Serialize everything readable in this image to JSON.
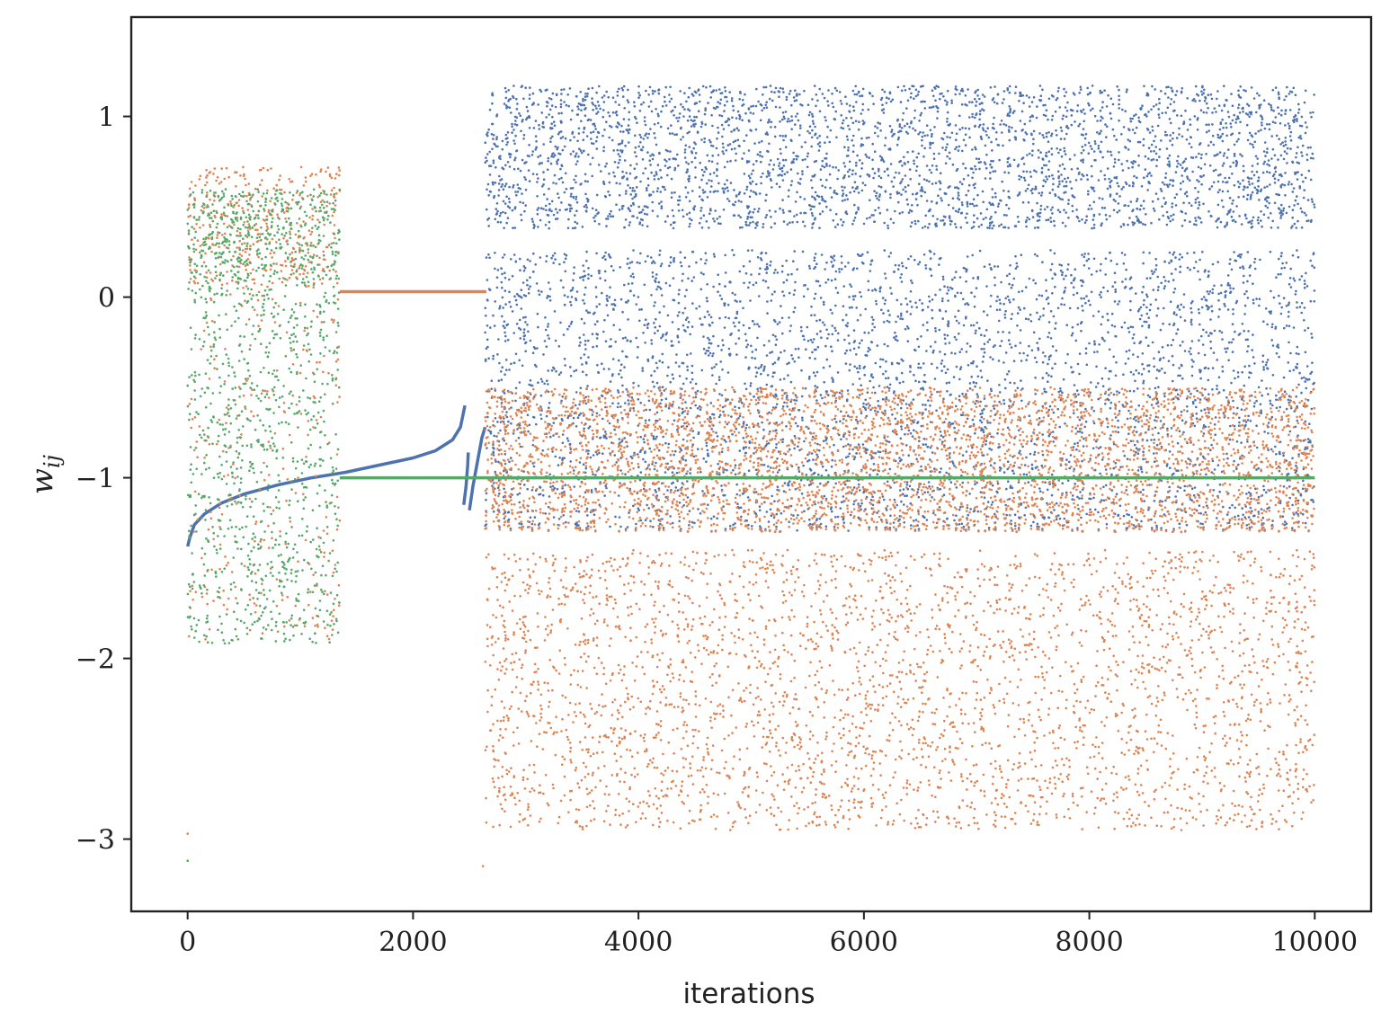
{
  "chart_data": {
    "type": "scatter",
    "xlabel": "iterations",
    "ylabel": "w",
    "ylabel_subscript": "ij",
    "xlim": [
      -500,
      10500
    ],
    "ylim": [
      -3.4,
      1.55
    ],
    "xticks": [
      0,
      2000,
      4000,
      6000,
      8000,
      10000
    ],
    "xtick_labels": [
      "0",
      "2000",
      "4000",
      "6000",
      "8000",
      "10000"
    ],
    "yticks": [
      1,
      0,
      -1,
      -2,
      -3
    ],
    "ytick_labels": [
      "1",
      "0",
      "−1",
      "−2",
      "−3"
    ],
    "grid": false,
    "colors": {
      "blue": "#4c72b0",
      "orange": "#dd8452",
      "green": "#55a868",
      "axes": "#222222"
    },
    "series": [
      {
        "color": "#4c72b0",
        "segments": [
          {
            "kind": "curve",
            "points": [
              [
                0,
                -1.38
              ],
              [
                20,
                -1.33
              ],
              [
                60,
                -1.26
              ],
              [
                150,
                -1.2
              ],
              [
                300,
                -1.14
              ],
              [
                500,
                -1.09
              ],
              [
                800,
                -1.04
              ],
              [
                1100,
                -1.0
              ],
              [
                1400,
                -0.97
              ],
              [
                1700,
                -0.93
              ],
              [
                2000,
                -0.89
              ],
              [
                2200,
                -0.85
              ],
              [
                2350,
                -0.79
              ],
              [
                2420,
                -0.72
              ],
              [
                2460,
                -0.6
              ]
            ]
          },
          {
            "kind": "curve",
            "points": [
              [
                2450,
                -1.15
              ],
              [
                2470,
                -1.05
              ],
              [
                2485,
                -0.93
              ],
              [
                2490,
                -0.86
              ]
            ]
          },
          {
            "kind": "curve",
            "points": [
              [
                2500,
                -1.18
              ],
              [
                2530,
                -1.05
              ],
              [
                2560,
                -0.95
              ],
              [
                2610,
                -0.78
              ],
              [
                2640,
                -0.72
              ]
            ]
          },
          {
            "kind": "noise",
            "x": [
              2640,
              10000
            ],
            "bands": [
              [
                0.38,
                1.17,
                0.45
              ],
              [
                -1.3,
                0.26,
                0.55
              ]
            ]
          }
        ]
      },
      {
        "color": "#dd8452",
        "segments": [
          {
            "kind": "noise",
            "x": [
              0,
              1350
            ],
            "bands": [
              [
                0.05,
                0.72,
                0.3
              ],
              [
                -1.9,
                0.05,
                0.2
              ]
            ]
          },
          {
            "kind": "line",
            "x": [
              1350,
              2650
            ],
            "y": 0.03
          },
          {
            "kind": "noise",
            "x": [
              2640,
              10000
            ],
            "bands": [
              [
                -1.3,
                -0.5,
                0.55
              ],
              [
                -2.95,
                -1.4,
                0.45
              ]
            ]
          }
        ],
        "outliers": [
          [
            0,
            -2.97
          ],
          [
            2620,
            -3.15
          ]
        ]
      },
      {
        "color": "#55a868",
        "segments": [
          {
            "kind": "noise",
            "x": [
              0,
              1350
            ],
            "bands": [
              [
                0.1,
                0.6,
                0.35
              ],
              [
                -1.92,
                0.1,
                0.65
              ]
            ]
          },
          {
            "kind": "line",
            "x": [
              1350,
              10000
            ],
            "y": -1.0
          }
        ],
        "outliers": [
          [
            0,
            -3.12
          ]
        ]
      }
    ]
  }
}
